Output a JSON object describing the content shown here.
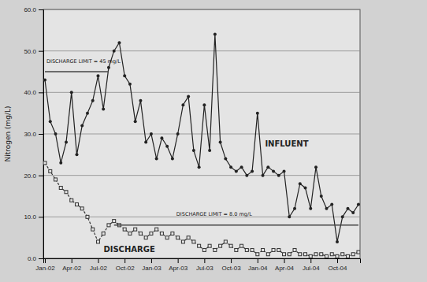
{
  "chart_data": {
    "type": "line",
    "y_label": "Nitrogen (mg/L)",
    "categories": [
      "Jan-02",
      null,
      null,
      null,
      null,
      "Apr-02",
      null,
      null,
      null,
      null,
      "Jul-02",
      null,
      null,
      null,
      null,
      "Oct-02",
      null,
      null,
      null,
      null,
      "Jan-03",
      null,
      null,
      null,
      null,
      "Apr-03",
      null,
      null,
      null,
      null,
      "Jul-03",
      null,
      null,
      null,
      null,
      "Oct-03",
      null,
      null,
      null,
      null,
      "Jan-04",
      null,
      null,
      null,
      null,
      "Apr-04",
      null,
      null,
      null,
      null,
      "Jul-04",
      null,
      null,
      null,
      null,
      "Oct-04",
      null,
      null,
      null,
      null
    ],
    "series": [
      {
        "name": "INFLUENT",
        "color": "#222222",
        "marker": "circle",
        "line_style": "solid",
        "values": [
          43,
          33,
          30,
          23,
          28,
          40,
          25,
          32,
          35,
          38,
          44,
          36,
          46,
          50,
          52,
          44,
          42,
          33,
          38,
          28,
          30,
          24,
          29,
          27,
          24,
          30,
          37,
          39,
          26,
          22,
          37,
          26,
          54,
          28,
          24,
          22,
          21,
          22,
          20,
          21,
          35,
          20,
          22,
          21,
          20,
          21,
          10,
          12,
          18,
          17,
          12,
          22,
          15,
          12,
          13,
          4,
          10,
          12,
          11,
          13
        ]
      },
      {
        "name": "DISCHARGE",
        "color": "#333333",
        "marker": "square",
        "line_style": "dashed",
        "values": [
          23,
          21,
          19,
          17,
          16,
          14,
          13,
          12,
          10,
          7,
          4,
          6,
          8,
          9,
          8,
          7,
          6,
          7,
          6,
          5,
          6,
          7,
          6,
          5,
          6,
          5,
          4,
          5,
          4,
          3,
          2,
          3,
          2,
          3,
          4,
          3,
          2,
          3,
          2,
          2,
          1,
          2,
          1,
          2,
          2,
          1,
          1,
          2,
          1,
          1,
          0.5,
          1,
          1,
          0.5,
          1,
          0.5,
          1,
          0.5,
          1,
          1.5
        ]
      },
      {
        "name": "DISCHARGE LIMIT = 45 mg/L",
        "color": "#444444",
        "marker": "none",
        "line_style": "solid",
        "values": [
          45,
          45,
          45,
          45,
          45,
          45,
          45,
          45,
          45,
          45,
          45,
          45,
          45,
          null,
          null,
          null,
          null,
          null,
          null,
          null,
          null,
          null,
          null,
          null,
          null,
          null,
          null,
          null,
          null,
          null,
          null,
          null,
          null,
          null,
          null,
          null,
          null,
          null,
          null,
          null,
          null,
          null,
          null,
          null,
          null,
          null,
          null,
          null,
          null,
          null,
          null,
          null,
          null,
          null,
          null,
          null,
          null,
          null,
          null,
          null
        ]
      },
      {
        "name": "DISCHARGE LIMIT = 8.0 mg/L",
        "color": "#444444",
        "marker": "none",
        "line_style": "solid",
        "values": [
          null,
          null,
          null,
          null,
          null,
          null,
          null,
          null,
          null,
          null,
          null,
          null,
          null,
          8,
          8,
          8,
          8,
          8,
          8,
          8,
          8,
          8,
          8,
          8,
          8,
          8,
          8,
          8,
          8,
          8,
          8,
          8,
          8,
          8,
          8,
          8,
          8,
          8,
          8,
          8,
          8,
          8,
          8,
          8,
          8,
          8,
          8,
          8,
          8,
          8,
          8,
          8,
          8,
          8,
          8,
          8,
          8,
          8,
          8,
          8
        ]
      }
    ],
    "ylim": [
      0,
      60
    ],
    "yticks": [
      {
        "value": 0,
        "label": "0.0"
      },
      {
        "value": 10,
        "label": "10.0"
      },
      {
        "value": 20,
        "label": "20.0"
      },
      {
        "value": 30,
        "label": "30.0"
      },
      {
        "value": 40,
        "label": "40.0"
      },
      {
        "value": 50,
        "label": "50.0"
      },
      {
        "value": 60,
        "label": "60.0"
      }
    ],
    "grid": true
  }
}
